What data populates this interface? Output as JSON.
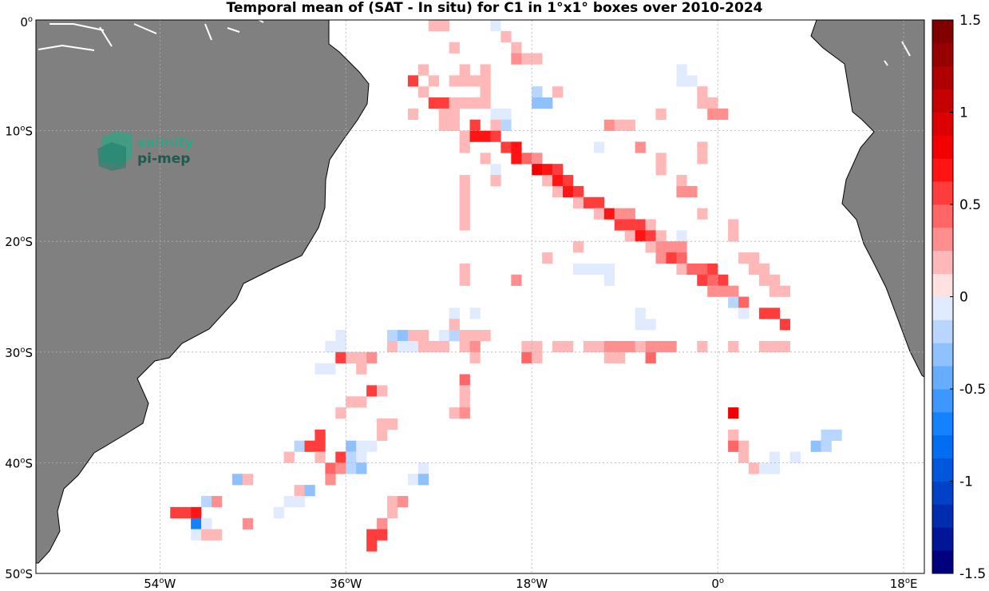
{
  "title": "Temporal mean of (SAT - In situ) for C1 in 1°x1° boxes over 2010-2024",
  "logo": {
    "line1": "salinity",
    "line2": "pi-mep"
  },
  "map": {
    "lon_range": [
      -66,
      20
    ],
    "lat_range": [
      -50,
      0
    ],
    "lat_ticks": [
      {
        "value": 0,
        "label": "0",
        "sup": "o",
        "suffix": ""
      },
      {
        "value": -10,
        "label": "10",
        "sup": "o",
        "suffix": "S"
      },
      {
        "value": -20,
        "label": "20",
        "sup": "o",
        "suffix": "S"
      },
      {
        "value": -30,
        "label": "30",
        "sup": "o",
        "suffix": "S"
      },
      {
        "value": -40,
        "label": "40",
        "sup": "o",
        "suffix": "S"
      },
      {
        "value": -50,
        "label": "50",
        "sup": "o",
        "suffix": "S"
      }
    ],
    "lon_ticks": [
      {
        "value": -54,
        "label": "54",
        "sup": "o",
        "suffix": "W"
      },
      {
        "value": -36,
        "label": "36",
        "sup": "o",
        "suffix": "W"
      },
      {
        "value": -18,
        "label": "18",
        "sup": "o",
        "suffix": "W"
      },
      {
        "value": 0,
        "label": "0",
        "sup": "o",
        "suffix": ""
      },
      {
        "value": 18,
        "label": "18",
        "sup": "o",
        "suffix": "E"
      }
    ],
    "land_color": "#808080",
    "grid": true
  },
  "colorbar": {
    "range": [
      -1.5,
      1.5
    ],
    "levels": 24,
    "ticks": [
      {
        "value": 1.5,
        "label": "1.5"
      },
      {
        "value": 1,
        "label": "1"
      },
      {
        "value": 0.5,
        "label": "0.5"
      },
      {
        "value": 0,
        "label": "0"
      },
      {
        "value": -0.5,
        "label": "-0.5"
      },
      {
        "value": -1,
        "label": "-1"
      },
      {
        "value": -1.5,
        "label": "-1.5"
      }
    ]
  },
  "chart_data": {
    "type": "heatmap",
    "title": "Temporal mean of (SAT - In situ) for C1 in 1°x1° boxes over 2010-2024",
    "xlabel": "",
    "ylabel": "",
    "xlim": [
      -66,
      20
    ],
    "ylim": [
      -50,
      0
    ],
    "cell_size_deg": 1,
    "cells": [
      [
        -27.5,
        -0.5,
        0.2
      ],
      [
        -26.5,
        -0.5,
        0.2
      ],
      [
        -21.5,
        -0.5,
        -0.1
      ],
      [
        -20.5,
        -1.5,
        0.2
      ],
      [
        -25.5,
        -2.5,
        0.15
      ],
      [
        -19.5,
        -2.5,
        0.2
      ],
      [
        -19.5,
        -3.5,
        0.3
      ],
      [
        -18.5,
        -3.5,
        0.2
      ],
      [
        -17.5,
        -3.5,
        0.2
      ],
      [
        -28.5,
        -4.5,
        0.2
      ],
      [
        -24.5,
        -4.5,
        0.2
      ],
      [
        -22.5,
        -4.5,
        0.15
      ],
      [
        -3.5,
        -4.5,
        -0.1
      ],
      [
        -29.5,
        -5.5,
        0.5
      ],
      [
        -27.5,
        -5.5,
        0.2
      ],
      [
        -25.5,
        -5.5,
        0.2
      ],
      [
        -24.5,
        -5.5,
        0.2
      ],
      [
        -23.5,
        -5.5,
        0.2
      ],
      [
        -22.5,
        -5.5,
        0.2
      ],
      [
        -3.5,
        -5.5,
        -0.1
      ],
      [
        -2.5,
        -5.5,
        -0.1
      ],
      [
        -28.5,
        -6.5,
        0.2
      ],
      [
        -22.5,
        -6.5,
        0.2
      ],
      [
        -17.5,
        -6.5,
        -0.15
      ],
      [
        -15.5,
        -6.5,
        0.2
      ],
      [
        -1.5,
        -6.5,
        0.2
      ],
      [
        -27.5,
        -7.5,
        0.5
      ],
      [
        -26.5,
        -7.5,
        0.5
      ],
      [
        -25.5,
        -7.5,
        0.2
      ],
      [
        -24.5,
        -7.5,
        0.2
      ],
      [
        -23.5,
        -7.5,
        0.2
      ],
      [
        -22.5,
        -7.5,
        0.2
      ],
      [
        -17.5,
        -7.5,
        -0.3
      ],
      [
        -16.5,
        -7.5,
        -0.3
      ],
      [
        -1.5,
        -7.5,
        0.2
      ],
      [
        -0.5,
        -7.5,
        0.2
      ],
      [
        -29.5,
        -8.5,
        0.2
      ],
      [
        -26.5,
        -8.5,
        0.2
      ],
      [
        -25.5,
        -8.5,
        0.2
      ],
      [
        -21.5,
        -8.5,
        -0.1
      ],
      [
        -20.5,
        -8.5,
        -0.1
      ],
      [
        -5.5,
        -8.5,
        0.2
      ],
      [
        -0.5,
        -8.5,
        0.3
      ],
      [
        0.5,
        -8.5,
        0.3
      ],
      [
        -26.5,
        -9.5,
        0.2
      ],
      [
        -25.5,
        -9.5,
        0.2
      ],
      [
        -23.5,
        -9.5,
        0.6
      ],
      [
        -21.5,
        -9.5,
        0.2
      ],
      [
        -20.5,
        -9.5,
        -0.2
      ],
      [
        -10.5,
        -9.5,
        0.3
      ],
      [
        -9.5,
        -9.5,
        0.2
      ],
      [
        -8.5,
        -9.5,
        0.2
      ],
      [
        -24.5,
        -10.5,
        0.2
      ],
      [
        -23.5,
        -10.5,
        0.7
      ],
      [
        -22.5,
        -10.5,
        0.7
      ],
      [
        -21.5,
        -10.5,
        0.6
      ],
      [
        -24.5,
        -11.5,
        0.2
      ],
      [
        -20.5,
        -11.5,
        0.6
      ],
      [
        -19.5,
        -11.5,
        0.7
      ],
      [
        -11.5,
        -11.5,
        -0.1
      ],
      [
        -7.5,
        -11.5,
        0.3
      ],
      [
        -1.5,
        -11.5,
        0.2
      ],
      [
        -22.5,
        -12.5,
        0.2
      ],
      [
        -19.5,
        -12.5,
        0.7
      ],
      [
        -18.5,
        -12.5,
        0.4
      ],
      [
        -17.5,
        -12.5,
        0.3
      ],
      [
        -5.5,
        -12.5,
        0.2
      ],
      [
        -1.5,
        -12.5,
        0.2
      ],
      [
        -21.5,
        -13.5,
        -0.1
      ],
      [
        -17.5,
        -13.5,
        0.8
      ],
      [
        -16.5,
        -13.5,
        0.7
      ],
      [
        -15.5,
        -13.5,
        0.5
      ],
      [
        -5.5,
        -13.5,
        0.2
      ],
      [
        -24.5,
        -14.5,
        0.2
      ],
      [
        -21.5,
        -14.5,
        0.2
      ],
      [
        -16.5,
        -14.5,
        0.2
      ],
      [
        -15.5,
        -14.5,
        0.7
      ],
      [
        -14.5,
        -14.5,
        0.6
      ],
      [
        -3.5,
        -14.5,
        0.2
      ],
      [
        -24.5,
        -15.5,
        0.2
      ],
      [
        -15.5,
        -15.5,
        0.2
      ],
      [
        -14.5,
        -15.5,
        0.7
      ],
      [
        -13.5,
        -15.5,
        0.6
      ],
      [
        -3.5,
        -15.5,
        0.3
      ],
      [
        -2.5,
        -15.5,
        0.3
      ],
      [
        -24.5,
        -16.5,
        0.2
      ],
      [
        -13.5,
        -16.5,
        0.2
      ],
      [
        -12.5,
        -16.5,
        0.6
      ],
      [
        -11.5,
        -16.5,
        0.6
      ],
      [
        -24.5,
        -17.5,
        0.2
      ],
      [
        -11.5,
        -17.5,
        0.2
      ],
      [
        -10.5,
        -17.5,
        0.7
      ],
      [
        -9.5,
        -17.5,
        0.3
      ],
      [
        -8.5,
        -17.5,
        0.3
      ],
      [
        -1.5,
        -17.5,
        0.2
      ],
      [
        -24.5,
        -18.5,
        0.2
      ],
      [
        -9.5,
        -18.5,
        0.6
      ],
      [
        -8.5,
        -18.5,
        0.6
      ],
      [
        -7.5,
        -18.5,
        0.5
      ],
      [
        -6.5,
        -18.5,
        0.2
      ],
      [
        1.5,
        -18.5,
        0.2
      ],
      [
        -8.5,
        -19.5,
        0.2
      ],
      [
        -7.5,
        -19.5,
        0.7
      ],
      [
        -6.5,
        -19.5,
        0.5
      ],
      [
        -5.5,
        -19.5,
        0.2
      ],
      [
        -3.5,
        -19.5,
        -0.1
      ],
      [
        1.5,
        -19.5,
        0.2
      ],
      [
        -13.5,
        -20.5,
        0.2
      ],
      [
        -6.5,
        -20.5,
        0.2
      ],
      [
        -5.5,
        -20.5,
        0.3
      ],
      [
        -4.5,
        -20.5,
        0.3
      ],
      [
        -3.5,
        -20.5,
        0.3
      ],
      [
        -16.5,
        -21.5,
        0.2
      ],
      [
        -5.5,
        -21.5,
        0.3
      ],
      [
        -4.5,
        -21.5,
        0.5
      ],
      [
        -3.5,
        -21.5,
        0.4
      ],
      [
        2.5,
        -21.5,
        0.2
      ],
      [
        3.5,
        -21.5,
        0.2
      ],
      [
        -24.5,
        -22.5,
        0.2
      ],
      [
        -13.5,
        -22.5,
        -0.1
      ],
      [
        -12.5,
        -22.5,
        -0.1
      ],
      [
        -11.5,
        -22.5,
        -0.1
      ],
      [
        -10.5,
        -22.5,
        -0.1
      ],
      [
        -3.5,
        -22.5,
        0.2
      ],
      [
        -2.5,
        -22.5,
        0.4
      ],
      [
        -1.5,
        -22.5,
        0.4
      ],
      [
        -0.5,
        -22.5,
        0.6
      ],
      [
        3.5,
        -22.5,
        0.2
      ],
      [
        4.5,
        -22.5,
        0.2
      ],
      [
        -24.5,
        -23.5,
        0.2
      ],
      [
        -19.5,
        -23.5,
        0.3
      ],
      [
        -10.5,
        -23.5,
        -0.1
      ],
      [
        -1.5,
        -23.5,
        0.5
      ],
      [
        -0.5,
        -23.5,
        0.4
      ],
      [
        0.5,
        -23.5,
        0.6
      ],
      [
        4.5,
        -23.5,
        0.2
      ],
      [
        5.5,
        -23.5,
        0.2
      ],
      [
        -0.5,
        -24.5,
        0.3
      ],
      [
        0.5,
        -24.5,
        0.3
      ],
      [
        1.5,
        -24.5,
        0.3
      ],
      [
        5.5,
        -24.5,
        0.2
      ],
      [
        6.5,
        -24.5,
        0.2
      ],
      [
        1.5,
        -25.5,
        -0.2
      ],
      [
        2.5,
        -25.5,
        0.4
      ],
      [
        -25.5,
        -26.5,
        -0.1
      ],
      [
        -23.5,
        -26.5,
        -0.1
      ],
      [
        -7.5,
        -26.5,
        -0.1
      ],
      [
        2.5,
        -26.5,
        -0.1
      ],
      [
        4.5,
        -26.5,
        0.5
      ],
      [
        5.5,
        -26.5,
        0.5
      ],
      [
        -25.5,
        -27.5,
        0.2
      ],
      [
        -7.5,
        -27.5,
        -0.1
      ],
      [
        -6.5,
        -27.5,
        -0.1
      ],
      [
        6.5,
        -27.5,
        0.6
      ],
      [
        -36.5,
        -28.5,
        -0.1
      ],
      [
        -31.5,
        -28.5,
        -0.2
      ],
      [
        -30.5,
        -28.5,
        -0.3
      ],
      [
        -29.5,
        -28.5,
        0.2
      ],
      [
        -28.5,
        -28.5,
        0.2
      ],
      [
        -26.5,
        -28.5,
        -0.1
      ],
      [
        -25.5,
        -28.5,
        -0.2
      ],
      [
        -24.5,
        -28.5,
        0.2
      ],
      [
        -23.5,
        -28.5,
        0.2
      ],
      [
        -22.5,
        -28.5,
        0.2
      ],
      [
        -37.5,
        -29.5,
        -0.1
      ],
      [
        -36.5,
        -29.5,
        -0.1
      ],
      [
        -31.5,
        -29.5,
        0.2
      ],
      [
        -30.5,
        -29.5,
        -0.1
      ],
      [
        -29.5,
        -29.5,
        -0.1
      ],
      [
        -28.5,
        -29.5,
        0.2
      ],
      [
        -27.5,
        -29.5,
        0.2
      ],
      [
        -26.5,
        -29.5,
        0.2
      ],
      [
        -24.5,
        -29.5,
        0.2
      ],
      [
        -23.5,
        -29.5,
        0.3
      ],
      [
        -18.5,
        -29.5,
        0.2
      ],
      [
        -17.5,
        -29.5,
        0.2
      ],
      [
        -15.5,
        -29.5,
        0.2
      ],
      [
        -14.5,
        -29.5,
        0.2
      ],
      [
        -12.5,
        -29.5,
        0.2
      ],
      [
        -11.5,
        -29.5,
        0.2
      ],
      [
        -10.5,
        -29.5,
        0.3
      ],
      [
        -9.5,
        -29.5,
        0.3
      ],
      [
        -8.5,
        -29.5,
        0.3
      ],
      [
        -7.5,
        -29.5,
        0.2
      ],
      [
        -6.5,
        -29.5,
        0.3
      ],
      [
        -5.5,
        -29.5,
        0.3
      ],
      [
        -4.5,
        -29.5,
        0.3
      ],
      [
        -1.5,
        -29.5,
        0.2
      ],
      [
        1.5,
        -29.5,
        0.2
      ],
      [
        4.5,
        -29.5,
        0.2
      ],
      [
        5.5,
        -29.5,
        0.2
      ],
      [
        6.5,
        -29.5,
        0.2
      ],
      [
        -36.5,
        -30.5,
        0.5
      ],
      [
        -35.5,
        -30.5,
        0.2
      ],
      [
        -34.5,
        -30.5,
        0.2
      ],
      [
        -33.5,
        -30.5,
        0.3
      ],
      [
        -23.5,
        -30.5,
        0.2
      ],
      [
        -18.5,
        -30.5,
        0.4
      ],
      [
        -17.5,
        -30.5,
        0.2
      ],
      [
        -10.5,
        -30.5,
        0.2
      ],
      [
        -9.5,
        -30.5,
        0.2
      ],
      [
        -6.5,
        -30.5,
        0.4
      ],
      [
        -38.5,
        -31.5,
        -0.1
      ],
      [
        -37.5,
        -31.5,
        -0.1
      ],
      [
        -34.5,
        -31.5,
        0.2
      ],
      [
        -24.5,
        -32.5,
        0.4
      ],
      [
        -24.5,
        -33.5,
        0.2
      ],
      [
        -33.5,
        -33.5,
        0.6
      ],
      [
        -32.5,
        -33.5,
        0.2
      ],
      [
        -24.5,
        -34.5,
        0.2
      ],
      [
        -34.5,
        -34.5,
        0.2
      ],
      [
        -35.5,
        -34.5,
        0.2
      ],
      [
        -36.5,
        -35.5,
        0.2
      ],
      [
        -25.5,
        -35.5,
        0.2
      ],
      [
        -24.5,
        -35.5,
        0.3
      ],
      [
        1.5,
        -35.5,
        0.8
      ],
      [
        -32.5,
        -36.5,
        0.2
      ],
      [
        -31.5,
        -36.5,
        0.2
      ],
      [
        -32.5,
        -37.5,
        0.2
      ],
      [
        -38.5,
        -37.5,
        0.5
      ],
      [
        1.5,
        -37.5,
        0.2
      ],
      [
        10.5,
        -37.5,
        -0.2
      ],
      [
        11.5,
        -37.5,
        -0.2
      ],
      [
        -40.5,
        -38.5,
        -0.2
      ],
      [
        -39.5,
        -38.5,
        0.5
      ],
      [
        -38.5,
        -38.5,
        0.5
      ],
      [
        -35.5,
        -38.5,
        -0.3
      ],
      [
        -34.5,
        -38.5,
        -0.1
      ],
      [
        -33.5,
        -38.5,
        -0.1
      ],
      [
        1.5,
        -38.5,
        0.4
      ],
      [
        2.5,
        -38.5,
        0.2
      ],
      [
        9.5,
        -38.5,
        -0.3
      ],
      [
        10.5,
        -38.5,
        -0.2
      ],
      [
        -41.5,
        -39.5,
        0.2
      ],
      [
        -38.5,
        -39.5,
        0.2
      ],
      [
        -36.5,
        -39.5,
        0.5
      ],
      [
        -35.5,
        -39.5,
        -0.2
      ],
      [
        -34.5,
        -39.5,
        -0.1
      ],
      [
        2.5,
        -39.5,
        0.2
      ],
      [
        5.5,
        -39.5,
        -0.1
      ],
      [
        7.5,
        -39.5,
        -0.1
      ],
      [
        -37.5,
        -40.5,
        0.4
      ],
      [
        -36.5,
        -40.5,
        0.3
      ],
      [
        -35.5,
        -40.5,
        -0.2
      ],
      [
        -34.5,
        -40.5,
        -0.3
      ],
      [
        -28.5,
        -40.5,
        -0.1
      ],
      [
        3.5,
        -40.5,
        0.2
      ],
      [
        4.5,
        -40.5,
        -0.1
      ],
      [
        5.5,
        -40.5,
        -0.1
      ],
      [
        -46.5,
        -41.5,
        -0.3
      ],
      [
        -45.5,
        -41.5,
        0.2
      ],
      [
        -37.5,
        -41.5,
        0.3
      ],
      [
        -29.5,
        -41.5,
        -0.1
      ],
      [
        -28.5,
        -41.5,
        -0.3
      ],
      [
        -40.5,
        -42.5,
        0.2
      ],
      [
        -39.5,
        -42.5,
        -0.3
      ],
      [
        -49.5,
        -43.5,
        -0.2
      ],
      [
        -48.5,
        -43.5,
        0.3
      ],
      [
        -41.5,
        -43.5,
        -0.1
      ],
      [
        -40.5,
        -43.5,
        -0.1
      ],
      [
        -31.5,
        -43.5,
        0.2
      ],
      [
        -30.5,
        -43.5,
        0.3
      ],
      [
        -52.5,
        -44.5,
        0.6
      ],
      [
        -51.5,
        -44.5,
        0.6
      ],
      [
        -50.5,
        -44.5,
        0.7
      ],
      [
        -42.5,
        -44.5,
        -0.1
      ],
      [
        -31.5,
        -44.5,
        0.2
      ],
      [
        -50.5,
        -45.5,
        -0.7
      ],
      [
        -49.5,
        -45.5,
        -0.1
      ],
      [
        -45.5,
        -45.5,
        0.3
      ],
      [
        -32.5,
        -45.5,
        0.3
      ],
      [
        -50.5,
        -46.5,
        -0.1
      ],
      [
        -49.5,
        -46.5,
        0.2
      ],
      [
        -48.5,
        -46.5,
        0.2
      ],
      [
        -33.5,
        -46.5,
        0.5
      ],
      [
        -32.5,
        -46.5,
        0.5
      ],
      [
        -33.5,
        -47.5,
        0.5
      ]
    ]
  }
}
